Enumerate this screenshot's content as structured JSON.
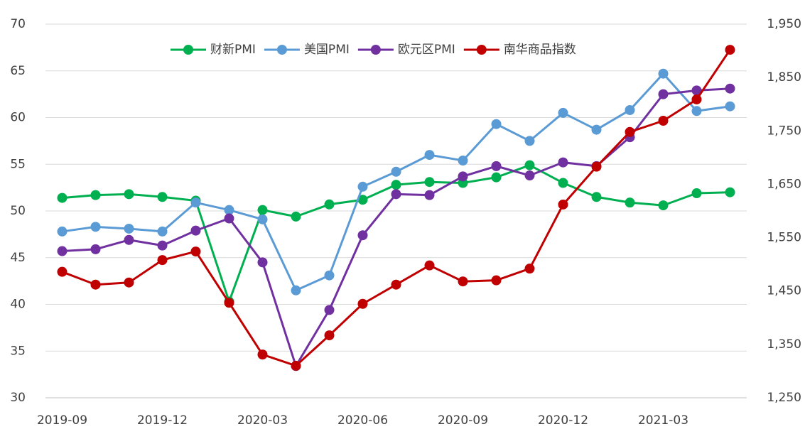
{
  "chart_data": {
    "type": "line",
    "categories": [
      "2019-09",
      null,
      null,
      "2019-12",
      null,
      null,
      "2020-03",
      null,
      null,
      "2020-06",
      null,
      null,
      "2020-09",
      null,
      null,
      "2020-12",
      null,
      null,
      "2021-03",
      null,
      null
    ],
    "series": [
      {
        "name": "财新PMI",
        "color": "#00b050",
        "values": [
          51.4,
          51.7,
          51.8,
          51.5,
          51.1,
          40.3,
          50.1,
          49.4,
          50.7,
          51.2,
          52.8,
          53.1,
          53.0,
          53.6,
          54.9,
          53.0,
          51.5,
          50.9,
          50.6,
          51.9,
          52.0
        ]
      },
      {
        "name": "美国PMI",
        "color": "#5b9bd5",
        "values": [
          47.8,
          48.3,
          48.1,
          47.8,
          50.9,
          50.1,
          49.1,
          41.5,
          43.1,
          52.6,
          54.2,
          56.0,
          55.4,
          59.3,
          57.5,
          60.5,
          58.7,
          60.8,
          64.7,
          60.7,
          61.2
        ]
      },
      {
        "name": "欧元区PMI",
        "color": "#7030a0",
        "values": [
          45.7,
          45.9,
          46.9,
          46.3,
          47.9,
          49.2,
          44.5,
          33.4,
          39.4,
          47.4,
          51.8,
          51.7,
          53.7,
          54.8,
          53.8,
          55.2,
          54.8,
          57.9,
          62.5,
          62.9,
          63.1
        ]
      },
      {
        "name": "南华商品指数",
        "color": "#c00000",
        "axis": "y2",
        "values": [
          1486,
          1462,
          1466,
          1508,
          1524,
          1428,
          1331,
          1310,
          1367,
          1426,
          1462,
          1498,
          1468,
          1470,
          1492,
          1612,
          1683,
          1748,
          1769,
          1809,
          1902
        ]
      }
    ],
    "ylim": [
      30,
      70
    ],
    "yticks": [
      30,
      35,
      40,
      45,
      50,
      55,
      60,
      65,
      70
    ],
    "y2lim": [
      1250,
      1950
    ],
    "y2ticks": [
      {
        "value": 1250,
        "label": "1,250"
      },
      {
        "value": 1350,
        "label": "1,350"
      },
      {
        "value": 1450,
        "label": "1,450"
      },
      {
        "value": 1550,
        "label": "1,550"
      },
      {
        "value": 1650,
        "label": "1,650"
      },
      {
        "value": 1750,
        "label": "1,750"
      },
      {
        "value": 1850,
        "label": "1,850"
      },
      {
        "value": 1950,
        "label": "1,950"
      }
    ],
    "grid": true,
    "legend": "top"
  }
}
